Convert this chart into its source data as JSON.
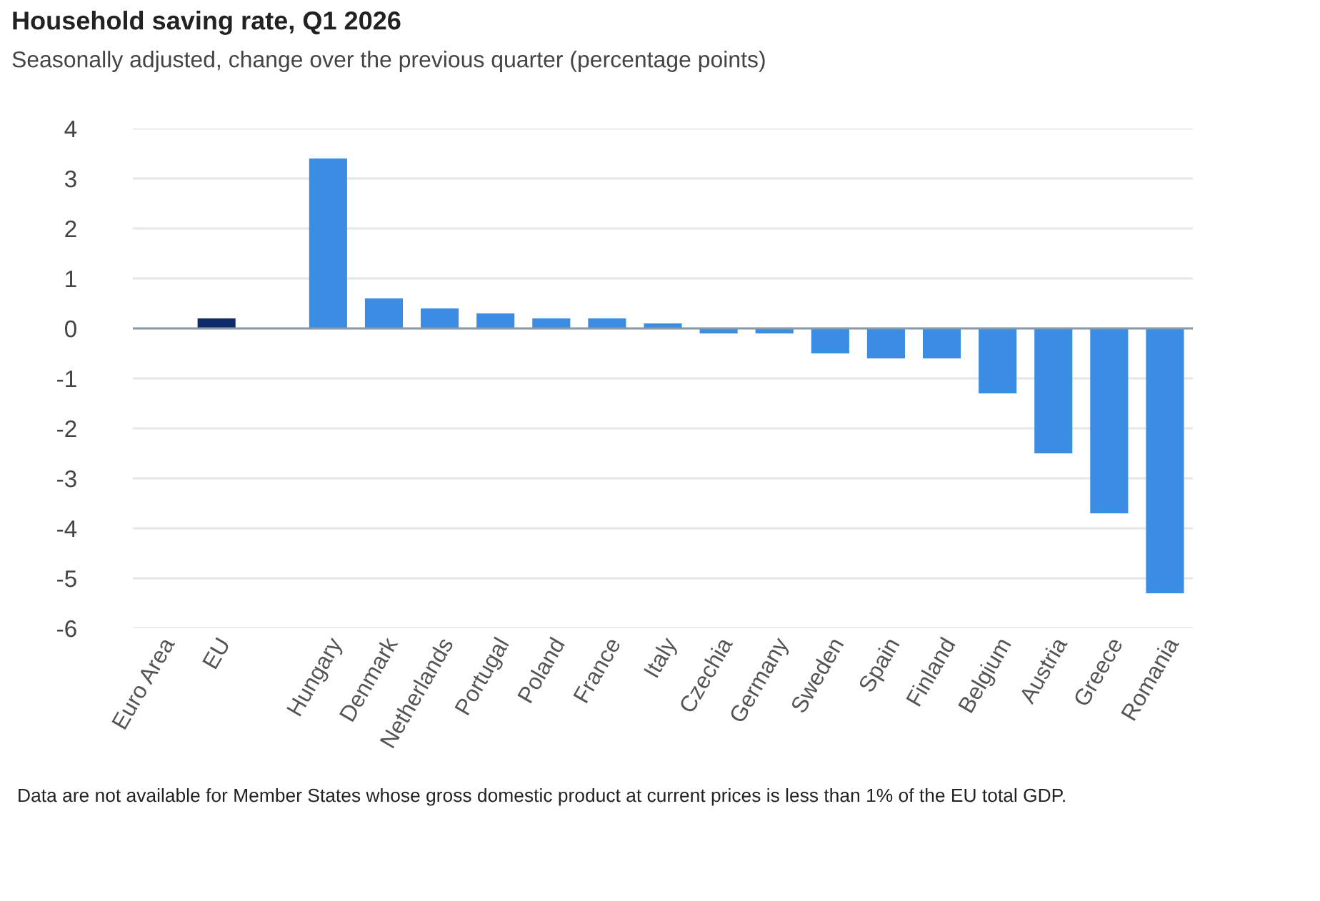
{
  "chart_data": {
    "type": "bar",
    "title": "Household saving rate, Q1 2026",
    "subtitle": "Seasonally adjusted, change over the previous quarter (percentage points)",
    "categories": [
      "Euro Area",
      "EU",
      null,
      "Hungary",
      "Denmark",
      "Netherlands",
      "Portugal",
      "Poland",
      "France",
      "Italy",
      "Czechia",
      "Germany",
      "Sweden",
      "Spain",
      "Finland",
      "Belgium",
      "Austria",
      "Greece",
      "Romania"
    ],
    "values": [
      null,
      0.2,
      null,
      3.4,
      0.6,
      0.4,
      0.3,
      0.2,
      0.2,
      0.1,
      -0.1,
      -0.1,
      -0.5,
      -0.6,
      -0.6,
      -1.3,
      -2.5,
      -3.7,
      -5.3
    ],
    "colors": [
      "#3b8de3",
      "#0f2a6b",
      "#3b8de3",
      "#3b8de3",
      "#3b8de3",
      "#3b8de3",
      "#3b8de3",
      "#3b8de3",
      "#3b8de3",
      "#3b8de3",
      "#3b8de3",
      "#3b8de3",
      "#3b8de3",
      "#3b8de3",
      "#3b8de3",
      "#3b8de3",
      "#3b8de3",
      "#3b8de3",
      "#3b8de3"
    ],
    "ylim": [
      -6,
      4
    ],
    "yticks": [
      -6,
      -5,
      -4,
      -3,
      -2,
      -1,
      0,
      1,
      2,
      3,
      4
    ],
    "grid": "y",
    "annotations": [
      "Data are not available for Member States whose gross domestic product at current prices is less than 1% of the EU total GDP."
    ]
  }
}
